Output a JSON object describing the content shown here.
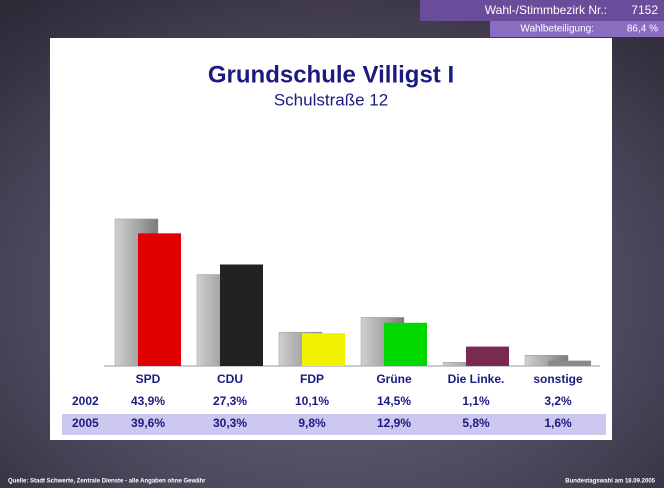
{
  "header": {
    "district_label": "Wahl-/Stimmbezirk Nr.:",
    "district_number": "7152",
    "turnout_label": "Wahlbeteiligung:",
    "turnout_value": "86,4 %"
  },
  "chart_data": {
    "type": "bar",
    "title": "Grundschule Villigst I",
    "subtitle": "Schulstraße 12",
    "categories": [
      "SPD",
      "CDU",
      "FDP",
      "Grüne",
      "Die Linke.",
      "sonstige"
    ],
    "series": [
      {
        "name": "2002",
        "color": "#a8a8a8",
        "values": [
          43.9,
          27.3,
          10.1,
          14.5,
          1.1,
          3.2
        ],
        "value_labels": [
          "43,9%",
          "27,3%",
          "10,1%",
          "14,5%",
          "1,1%",
          "3,2%"
        ]
      },
      {
        "name": "2005",
        "colors": [
          "#e00000",
          "#222222",
          "#f2f200",
          "#00d800",
          "#7a2a50",
          "#8a8a8a"
        ],
        "values": [
          39.6,
          30.3,
          9.8,
          12.9,
          5.8,
          1.6
        ],
        "value_labels": [
          "39,6%",
          "30,3%",
          "9,8%",
          "12,9%",
          "5,8%",
          "1,6%"
        ]
      }
    ]
  },
  "footer": {
    "source": "Quelle: Stadt Schwerte, Zentrale Dienste - alle Angaben ohne Gewähr",
    "election": "Bundestagswahl am 18.09.2005"
  }
}
